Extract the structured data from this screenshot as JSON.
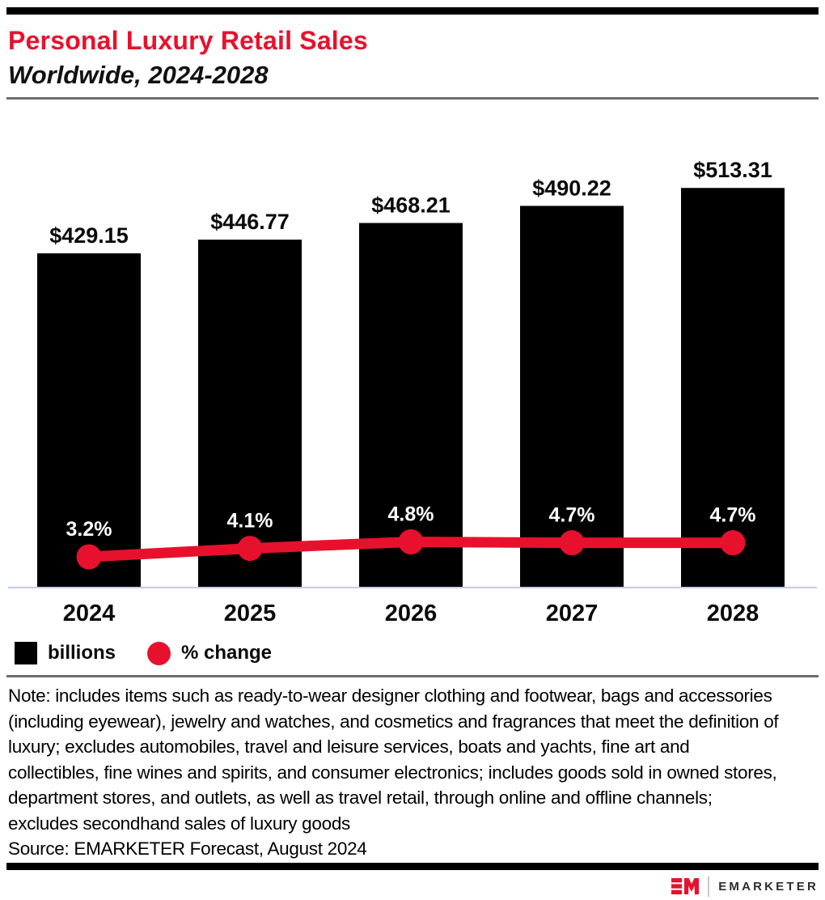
{
  "header": {
    "title": "Personal Luxury Retail Sales",
    "subtitle": "Worldwide, 2024-2028"
  },
  "chart_data": {
    "type": "bar",
    "subtype": "bar-with-line-overlay",
    "categories": [
      "2024",
      "2025",
      "2026",
      "2027",
      "2028"
    ],
    "series": [
      {
        "name": "billions",
        "type": "bar",
        "values": [
          429.15,
          446.77,
          468.21,
          490.22,
          513.31
        ],
        "labels": [
          "$429.15",
          "$446.77",
          "$468.21",
          "$490.22",
          "$513.31"
        ],
        "color": "#000000"
      },
      {
        "name": "% change",
        "type": "line",
        "values": [
          3.2,
          4.1,
          4.8,
          4.7,
          4.7
        ],
        "labels": [
          "3.2%",
          "4.1%",
          "4.8%",
          "4.7%",
          "4.7%"
        ],
        "color": "#e8112d"
      }
    ],
    "title": "Personal Luxury Retail Sales",
    "subtitle": "Worldwide, 2024-2028",
    "xlabel": "",
    "ylabel": "",
    "ylim_bar": [
      0,
      578
    ],
    "ylim_pct": [
      0,
      52
    ],
    "grid": false,
    "legend_position": "bottom-left",
    "baseline_color": "#c5cbe8"
  },
  "legend": {
    "items": [
      {
        "label": "billions",
        "swatch": "square",
        "color": "#000000"
      },
      {
        "label": "% change",
        "swatch": "circle",
        "color": "#e8112d"
      }
    ]
  },
  "note": "Note: includes items such as ready-to-wear designer clothing and footwear, bags and accessories (including eyewear), jewelry and watches, and cosmetics and fragrances that meet the definition of luxury; excludes automobiles, travel and leisure services, boats and yachts, fine art and collectibles, fine wines and spirits, and consumer electronics; includes goods sold in owned stores, department stores, and outlets, as well as travel retail, through online and offline channels; excludes secondhand sales of luxury goods",
  "source": "Source: EMARKETER Forecast, August 2024",
  "footer": {
    "brand": "EMARKETER"
  },
  "colors": {
    "accent_red": "#e8112d",
    "bar_black": "#000000",
    "baseline": "#c5cbe8",
    "divider_gray": "#6b6b6b",
    "pct_label_white": "#ffffff"
  }
}
